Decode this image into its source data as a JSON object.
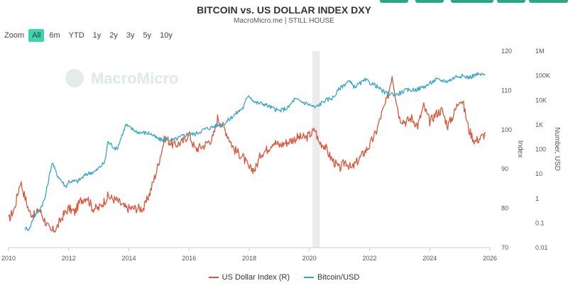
{
  "header": {
    "title": "BITCOIN vs. US DOLLAR INDEX DXY",
    "subtitle": "MacroMicro.me | STILL HOUSE"
  },
  "zoom": {
    "label": "Zoom",
    "options": [
      "All",
      "6m",
      "YTD",
      "1y",
      "2y",
      "3y",
      "5y",
      "10y"
    ],
    "active": "All"
  },
  "watermark": "MacroMicro",
  "colors": {
    "dxy": "#d9563c",
    "btc": "#3aa5c8",
    "accent": "#3fd4b0",
    "brand": "#2aa786"
  },
  "chart_data": {
    "type": "line",
    "x_ticks": [
      "2010",
      "2012",
      "2014",
      "2016",
      "2018",
      "2020",
      "2022",
      "2024",
      "2026"
    ],
    "xlim": [
      2010,
      2026
    ],
    "left_axis": {
      "ticks": [
        "120",
        "110",
        "100",
        "90",
        "80",
        "70"
      ],
      "label": "Index",
      "ylim": [
        70,
        120
      ]
    },
    "right_axis": {
      "ticks": [
        "1M",
        "100K",
        "10K",
        "1K",
        "100",
        "10",
        "1",
        "0.1",
        "0.01"
      ],
      "label": "Number, USD",
      "scale": "log",
      "ylim": [
        0.01,
        1000000
      ]
    },
    "shaded_band": [
      2020.1,
      2020.35
    ],
    "series": [
      {
        "name": "US Dollar Index (R)",
        "key": "dxy",
        "axis": "left",
        "points": [
          [
            2010.0,
            77
          ],
          [
            2010.2,
            80
          ],
          [
            2010.4,
            87
          ],
          [
            2010.5,
            84
          ],
          [
            2010.7,
            79
          ],
          [
            2010.9,
            78
          ],
          [
            2011.0,
            80
          ],
          [
            2011.2,
            77
          ],
          [
            2011.4,
            74
          ],
          [
            2011.6,
            75
          ],
          [
            2011.8,
            78
          ],
          [
            2012.0,
            80
          ],
          [
            2012.2,
            79
          ],
          [
            2012.4,
            82
          ],
          [
            2012.6,
            83
          ],
          [
            2012.8,
            80
          ],
          [
            2013.0,
            80
          ],
          [
            2013.3,
            83
          ],
          [
            2013.6,
            82
          ],
          [
            2013.9,
            80
          ],
          [
            2014.0,
            80
          ],
          [
            2014.3,
            80
          ],
          [
            2014.5,
            80
          ],
          [
            2014.7,
            84
          ],
          [
            2014.9,
            89
          ],
          [
            2015.0,
            92
          ],
          [
            2015.2,
            98
          ],
          [
            2015.5,
            96
          ],
          [
            2015.8,
            97
          ],
          [
            2016.0,
            99
          ],
          [
            2016.2,
            95
          ],
          [
            2016.5,
            96
          ],
          [
            2016.8,
            98
          ],
          [
            2016.95,
            103
          ],
          [
            2017.2,
            100
          ],
          [
            2017.5,
            95
          ],
          [
            2017.8,
            93
          ],
          [
            2018.0,
            90
          ],
          [
            2018.2,
            90
          ],
          [
            2018.4,
            94
          ],
          [
            2018.6,
            95
          ],
          [
            2018.8,
            97
          ],
          [
            2019.0,
            96
          ],
          [
            2019.3,
            97
          ],
          [
            2019.6,
            98
          ],
          [
            2019.9,
            98
          ],
          [
            2020.2,
            100
          ],
          [
            2020.3,
            97
          ],
          [
            2020.5,
            96
          ],
          [
            2020.7,
            93
          ],
          [
            2020.9,
            91
          ],
          [
            2021.0,
            90
          ],
          [
            2021.2,
            92
          ],
          [
            2021.4,
            90
          ],
          [
            2021.6,
            92
          ],
          [
            2021.8,
            94
          ],
          [
            2022.0,
            96
          ],
          [
            2022.2,
            99
          ],
          [
            2022.4,
            104
          ],
          [
            2022.6,
            108
          ],
          [
            2022.75,
            114
          ],
          [
            2022.9,
            107
          ],
          [
            2023.0,
            103
          ],
          [
            2023.2,
            102
          ],
          [
            2023.4,
            103
          ],
          [
            2023.6,
            101
          ],
          [
            2023.8,
            106
          ],
          [
            2024.0,
            102
          ],
          [
            2024.2,
            104
          ],
          [
            2024.4,
            105
          ],
          [
            2024.6,
            101
          ],
          [
            2024.8,
            104
          ],
          [
            2025.0,
            108
          ],
          [
            2025.1,
            107
          ],
          [
            2025.3,
            100
          ],
          [
            2025.5,
            97
          ],
          [
            2025.7,
            98
          ],
          [
            2025.85,
            99
          ]
        ]
      },
      {
        "name": "Bitcoin/USD",
        "key": "btc",
        "axis": "right",
        "points": [
          [
            2010.55,
            0.06
          ],
          [
            2010.7,
            0.06
          ],
          [
            2010.85,
            0.2
          ],
          [
            2011.0,
            0.3
          ],
          [
            2011.2,
            0.9
          ],
          [
            2011.45,
            30
          ],
          [
            2011.6,
            10
          ],
          [
            2011.9,
            3
          ],
          [
            2012.0,
            5
          ],
          [
            2012.3,
            5
          ],
          [
            2012.6,
            10
          ],
          [
            2012.9,
            13
          ],
          [
            2013.2,
            30
          ],
          [
            2013.3,
            200
          ],
          [
            2013.6,
            100
          ],
          [
            2013.9,
            1000
          ],
          [
            2014.0,
            800
          ],
          [
            2014.3,
            500
          ],
          [
            2014.7,
            450
          ],
          [
            2015.0,
            250
          ],
          [
            2015.5,
            240
          ],
          [
            2015.9,
            400
          ],
          [
            2016.2,
            420
          ],
          [
            2016.5,
            650
          ],
          [
            2016.9,
            900
          ],
          [
            2017.2,
            1200
          ],
          [
            2017.5,
            2500
          ],
          [
            2017.8,
            5000
          ],
          [
            2017.97,
            17000
          ],
          [
            2018.2,
            8000
          ],
          [
            2018.5,
            7000
          ],
          [
            2018.9,
            4000
          ],
          [
            2019.0,
            3700
          ],
          [
            2019.3,
            5000
          ],
          [
            2019.5,
            11000
          ],
          [
            2019.9,
            7500
          ],
          [
            2020.2,
            5000
          ],
          [
            2020.5,
            9500
          ],
          [
            2020.8,
            13000
          ],
          [
            2021.0,
            30000
          ],
          [
            2021.3,
            60000
          ],
          [
            2021.5,
            35000
          ],
          [
            2021.86,
            65000
          ],
          [
            2022.2,
            40000
          ],
          [
            2022.5,
            20000
          ],
          [
            2022.9,
            17000
          ],
          [
            2023.2,
            25000
          ],
          [
            2023.6,
            28000
          ],
          [
            2023.9,
            40000
          ],
          [
            2024.2,
            68000
          ],
          [
            2024.6,
            60000
          ],
          [
            2024.9,
            95000
          ],
          [
            2025.0,
            100000
          ],
          [
            2025.3,
            85000
          ],
          [
            2025.55,
            110000
          ],
          [
            2025.85,
            110000
          ]
        ]
      }
    ]
  },
  "legend": [
    {
      "label": "US Dollar Index (R)",
      "key": "dxy"
    },
    {
      "label": "Bitcoin/USD",
      "key": "btc"
    }
  ]
}
